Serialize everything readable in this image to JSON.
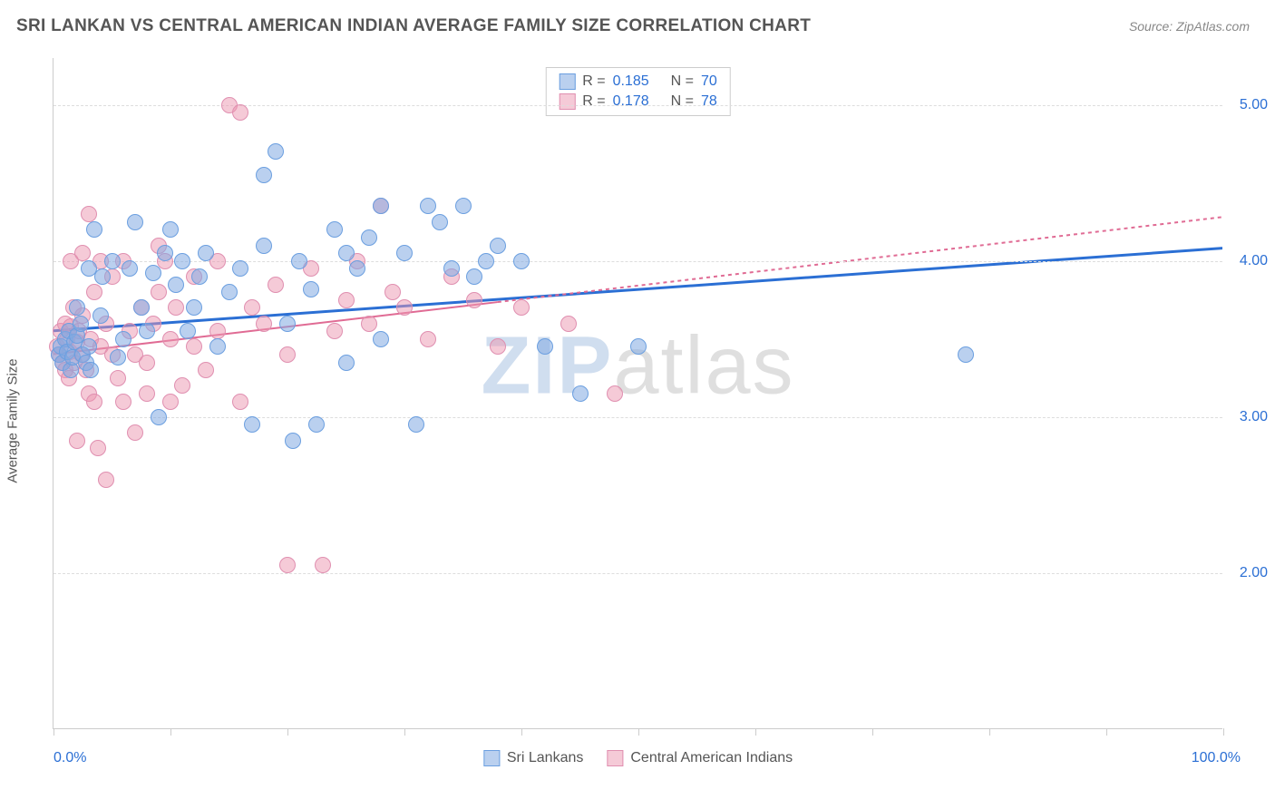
{
  "header": {
    "title": "SRI LANKAN VS CENTRAL AMERICAN INDIAN AVERAGE FAMILY SIZE CORRELATION CHART",
    "source": "Source: ZipAtlas.com"
  },
  "chart": {
    "type": "scatter",
    "background_color": "#ffffff",
    "grid_color": "#dddddd",
    "axis_color": "#cccccc",
    "y_axis": {
      "title": "Average Family Size",
      "title_color": "#555555",
      "title_fontsize": 15,
      "label_color": "#2b6fd4",
      "label_fontsize": 16,
      "min": 1.0,
      "max": 5.3,
      "ticks": [
        2.0,
        3.0,
        4.0,
        5.0
      ],
      "tick_labels": [
        "2.00",
        "3.00",
        "4.00",
        "5.00"
      ]
    },
    "x_axis": {
      "min": 0,
      "max": 100,
      "ticks": [
        0,
        10,
        20,
        30,
        40,
        50,
        60,
        70,
        80,
        90,
        100
      ],
      "left_label": "0.0%",
      "right_label": "100.0%",
      "label_color": "#2b6fd4",
      "label_fontsize": 16
    },
    "watermark": {
      "zip": "ZIP",
      "atlas": "atlas"
    },
    "series": [
      {
        "name": "Sri Lankans",
        "color_fill": "rgba(130,170,225,0.55)",
        "color_stroke": "#6b9fe0",
        "marker_radius": 9,
        "trend": {
          "y_at_x0": 3.55,
          "y_at_x100": 4.08,
          "stroke": "#2b6fd4",
          "width": 3,
          "dash": "none",
          "solid_until_x": 100
        },
        "stats": {
          "R": "0.185",
          "N": "70"
        },
        "points": [
          [
            0.5,
            3.4
          ],
          [
            0.6,
            3.45
          ],
          [
            0.8,
            3.35
          ],
          [
            1.0,
            3.5
          ],
          [
            1.2,
            3.42
          ],
          [
            1.3,
            3.55
          ],
          [
            1.5,
            3.3
          ],
          [
            1.6,
            3.38
          ],
          [
            1.8,
            3.48
          ],
          [
            2.0,
            3.52
          ],
          [
            2.0,
            3.7
          ],
          [
            2.3,
            3.6
          ],
          [
            2.5,
            3.4
          ],
          [
            2.8,
            3.35
          ],
          [
            3.0,
            3.45
          ],
          [
            3.0,
            3.95
          ],
          [
            3.2,
            3.3
          ],
          [
            3.5,
            4.2
          ],
          [
            4.0,
            3.65
          ],
          [
            4.2,
            3.9
          ],
          [
            5.0,
            4.0
          ],
          [
            5.5,
            3.38
          ],
          [
            6.0,
            3.5
          ],
          [
            6.5,
            3.95
          ],
          [
            7.0,
            4.25
          ],
          [
            7.5,
            3.7
          ],
          [
            8.0,
            3.55
          ],
          [
            8.5,
            3.92
          ],
          [
            9.0,
            3.0
          ],
          [
            9.5,
            4.05
          ],
          [
            10.0,
            4.2
          ],
          [
            10.5,
            3.85
          ],
          [
            11.0,
            4.0
          ],
          [
            11.5,
            3.55
          ],
          [
            12.0,
            3.7
          ],
          [
            12.5,
            3.9
          ],
          [
            13.0,
            4.05
          ],
          [
            14.0,
            3.45
          ],
          [
            15.0,
            3.8
          ],
          [
            16.0,
            3.95
          ],
          [
            17.0,
            2.95
          ],
          [
            18.0,
            4.1
          ],
          [
            18.0,
            4.55
          ],
          [
            19.0,
            4.7
          ],
          [
            20.0,
            3.6
          ],
          [
            20.5,
            2.85
          ],
          [
            21.0,
            4.0
          ],
          [
            22.0,
            3.82
          ],
          [
            22.5,
            2.95
          ],
          [
            24.0,
            4.2
          ],
          [
            25.0,
            3.35
          ],
          [
            25.0,
            4.05
          ],
          [
            26.0,
            3.95
          ],
          [
            27.0,
            4.15
          ],
          [
            28.0,
            3.5
          ],
          [
            28.0,
            4.35
          ],
          [
            30.0,
            4.05
          ],
          [
            31.0,
            2.95
          ],
          [
            32.0,
            4.35
          ],
          [
            33.0,
            4.25
          ],
          [
            34.0,
            3.95
          ],
          [
            35.0,
            4.35
          ],
          [
            36.0,
            3.9
          ],
          [
            37.0,
            4.0
          ],
          [
            38.0,
            4.1
          ],
          [
            40.0,
            4.0
          ],
          [
            42.0,
            3.45
          ],
          [
            45.0,
            3.15
          ],
          [
            50.0,
            3.45
          ],
          [
            78.0,
            3.4
          ]
        ]
      },
      {
        "name": "Central American Indians",
        "color_fill": "rgba(235,150,175,0.50)",
        "color_stroke": "#e08fb0",
        "marker_radius": 9,
        "trend": {
          "y_at_x0": 3.4,
          "y_at_x100": 4.28,
          "stroke": "#e06b94",
          "width": 2,
          "dash": "4 4",
          "solid_until_x": 38
        },
        "stats": {
          "R": "0.178",
          "N": "78"
        },
        "points": [
          [
            0.3,
            3.45
          ],
          [
            0.5,
            3.4
          ],
          [
            0.6,
            3.55
          ],
          [
            0.8,
            3.35
          ],
          [
            1.0,
            3.3
          ],
          [
            1.0,
            3.6
          ],
          [
            1.2,
            3.5
          ],
          [
            1.3,
            3.25
          ],
          [
            1.4,
            3.42
          ],
          [
            1.5,
            3.58
          ],
          [
            1.5,
            4.0
          ],
          [
            1.7,
            3.7
          ],
          [
            1.8,
            3.35
          ],
          [
            2.0,
            3.48
          ],
          [
            2.0,
            2.85
          ],
          [
            2.2,
            3.55
          ],
          [
            2.4,
            3.4
          ],
          [
            2.5,
            3.65
          ],
          [
            2.5,
            4.05
          ],
          [
            2.8,
            3.3
          ],
          [
            3.0,
            4.3
          ],
          [
            3.0,
            3.15
          ],
          [
            3.2,
            3.5
          ],
          [
            3.5,
            3.8
          ],
          [
            3.5,
            3.1
          ],
          [
            3.8,
            2.8
          ],
          [
            4.0,
            3.45
          ],
          [
            4.0,
            4.0
          ],
          [
            4.5,
            3.6
          ],
          [
            4.5,
            2.6
          ],
          [
            5.0,
            3.9
          ],
          [
            5.0,
            3.4
          ],
          [
            5.5,
            3.25
          ],
          [
            6.0,
            3.1
          ],
          [
            6.0,
            4.0
          ],
          [
            6.5,
            3.55
          ],
          [
            7.0,
            3.4
          ],
          [
            7.0,
            2.9
          ],
          [
            7.5,
            3.7
          ],
          [
            8.0,
            3.35
          ],
          [
            8.0,
            3.15
          ],
          [
            8.5,
            3.6
          ],
          [
            9.0,
            3.8
          ],
          [
            9.0,
            4.1
          ],
          [
            9.5,
            4.0
          ],
          [
            10.0,
            3.5
          ],
          [
            10.0,
            3.1
          ],
          [
            10.5,
            3.7
          ],
          [
            11.0,
            3.2
          ],
          [
            12.0,
            3.45
          ],
          [
            12.0,
            3.9
          ],
          [
            13.0,
            3.3
          ],
          [
            14.0,
            4.0
          ],
          [
            14.0,
            3.55
          ],
          [
            15.0,
            5.0
          ],
          [
            16.0,
            3.1
          ],
          [
            16.0,
            4.95
          ],
          [
            17.0,
            3.7
          ],
          [
            18.0,
            3.6
          ],
          [
            19.0,
            3.85
          ],
          [
            20.0,
            3.4
          ],
          [
            20.0,
            2.05
          ],
          [
            22.0,
            3.95
          ],
          [
            23.0,
            2.05
          ],
          [
            24.0,
            3.55
          ],
          [
            25.0,
            3.75
          ],
          [
            26.0,
            4.0
          ],
          [
            27.0,
            3.6
          ],
          [
            28.0,
            4.35
          ],
          [
            29.0,
            3.8
          ],
          [
            30.0,
            3.7
          ],
          [
            32.0,
            3.5
          ],
          [
            34.0,
            3.9
          ],
          [
            36.0,
            3.75
          ],
          [
            38.0,
            3.45
          ],
          [
            40.0,
            3.7
          ],
          [
            44.0,
            3.6
          ],
          [
            48.0,
            3.15
          ]
        ]
      }
    ],
    "bottom_legend": [
      {
        "label": "Sri Lankans",
        "fill": "rgba(130,170,225,0.55)",
        "stroke": "#6b9fe0"
      },
      {
        "label": "Central American Indians",
        "fill": "rgba(235,150,175,0.50)",
        "stroke": "#e08fb0"
      }
    ]
  }
}
